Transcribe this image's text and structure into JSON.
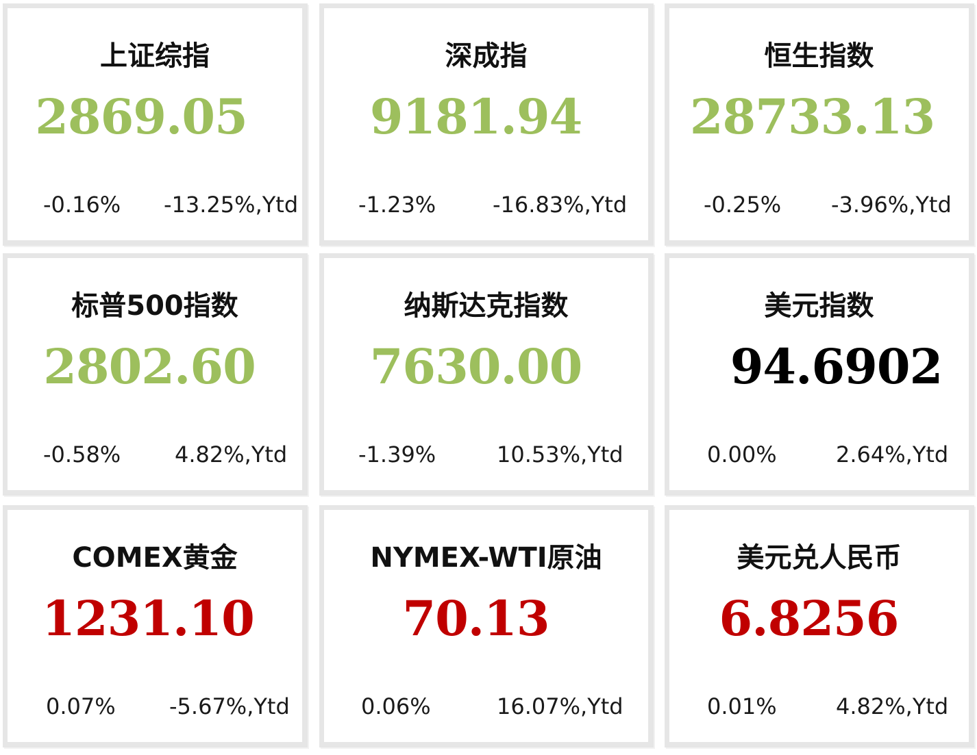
{
  "colors": {
    "up": "#9dbf5d",
    "down": "#c00000",
    "neutral": "#000000"
  },
  "cards": [
    {
      "name": "上证综指",
      "value": "2869.05",
      "change": "-0.16%",
      "ytd": "-13.25%,Ytd",
      "value_color": "#9dbf5d"
    },
    {
      "name": "深成指",
      "value": "9181.94",
      "change": "-1.23%",
      "ytd": "-16.83%,Ytd",
      "value_color": "#9dbf5d"
    },
    {
      "name": "恒生指数",
      "value": "28733.13",
      "change": "-0.25%",
      "ytd": "-3.96%,Ytd",
      "value_color": "#9dbf5d"
    },
    {
      "name": "标普500指数",
      "value": "2802.60",
      "change": "-0.58%",
      "ytd": "4.82%,Ytd",
      "value_color": "#9dbf5d"
    },
    {
      "name": "纳斯达克指数",
      "value": "7630.00",
      "change": "-1.39%",
      "ytd": "10.53%,Ytd",
      "value_color": "#9dbf5d"
    },
    {
      "name": "美元指数",
      "value": "94.6902",
      "change": "0.00%",
      "ytd": "2.64%,Ytd",
      "value_color": "#000000"
    },
    {
      "name": "COMEX黄金",
      "value": "1231.10",
      "change": "0.07%",
      "ytd": "-5.67%,Ytd",
      "value_color": "#c00000"
    },
    {
      "name": "NYMEX-WTI原油",
      "value": "70.13",
      "change": "0.06%",
      "ytd": "16.07%,Ytd",
      "value_color": "#c00000"
    },
    {
      "name": "美元兑人民币",
      "value": "6.8256",
      "change": "0.01%",
      "ytd": "4.82%,Ytd",
      "value_color": "#c00000"
    }
  ]
}
